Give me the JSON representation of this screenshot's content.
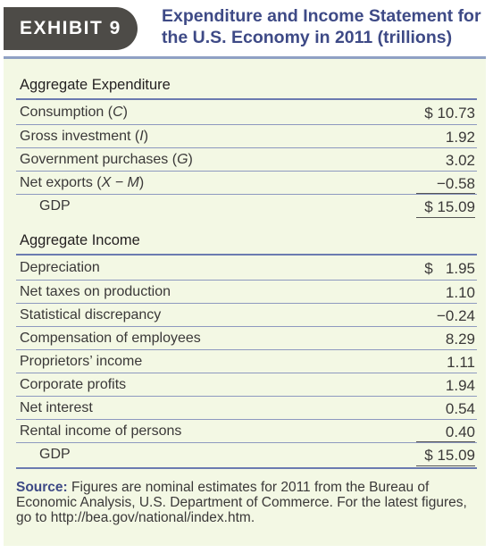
{
  "exhibit_label": "EXHIBIT 9",
  "title_line1": "Expenditure and Income Statement for",
  "title_line2": "the U.S. Economy in 2011 (trillions)",
  "expenditure": {
    "heading": "Aggregate Expenditure",
    "rows": [
      {
        "label": "Consumption",
        "var": "C",
        "value": "$ 10.73"
      },
      {
        "label": "Gross investment",
        "var": "I",
        "value": "1.92"
      },
      {
        "label": "Government purchases",
        "var": "G",
        "value": "3.02"
      },
      {
        "label": "Net exports",
        "var": "X − M",
        "value": "−0.58"
      }
    ],
    "total": {
      "label": "GDP",
      "value": "$ 15.09"
    }
  },
  "income": {
    "heading": "Aggregate Income",
    "rows": [
      {
        "label": "Depreciation",
        "value": "$   1.95"
      },
      {
        "label": "Net taxes on production",
        "value": "1.10"
      },
      {
        "label": "Statistical discrepancy",
        "value": "−0.24"
      },
      {
        "label": "Compensation of employees",
        "value": "8.29"
      },
      {
        "label": "Proprietors’ income",
        "value": "1.11"
      },
      {
        "label": "Corporate profits",
        "value": "1.94"
      },
      {
        "label": "Net interest",
        "value": "0.54"
      },
      {
        "label": "Rental income of persons",
        "value": "0.40"
      }
    ],
    "total": {
      "label": "GDP",
      "value": "$ 15.09"
    }
  },
  "source": {
    "lead": "Source:",
    "text": "Figures are nominal estimates for 2011 from the Bureau of Economic Analysis, U.S. Department of Commerce. For the latest figures, go to http://bea.gov/national/index.htm."
  }
}
